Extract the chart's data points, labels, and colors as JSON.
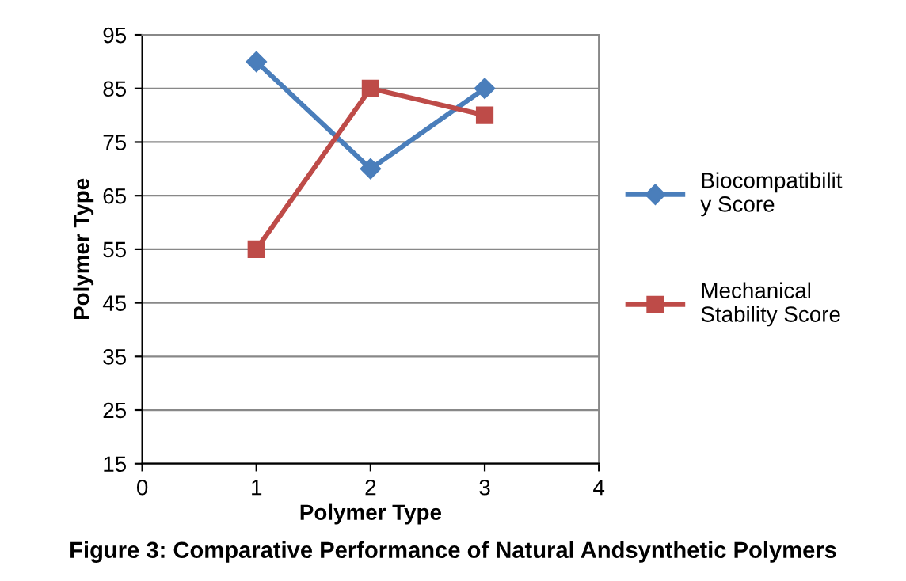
{
  "chart_data": {
    "type": "line",
    "xlabel": "Polymer Type",
    "ylabel": "Polymer Type",
    "x": [
      1,
      2,
      3
    ],
    "series": [
      {
        "name": "Biocompatibility Score",
        "color": "#4a7ebb",
        "values": [
          90,
          70,
          85
        ],
        "marker": "diamond"
      },
      {
        "name": "Mechanical Stability Score",
        "color": "#be4b48",
        "values": [
          55,
          85,
          80
        ],
        "marker": "square"
      }
    ],
    "xlim": [
      0,
      4
    ],
    "xticks": [
      0,
      1,
      2,
      3,
      4
    ],
    "ylim": [
      15,
      95
    ],
    "yticks": [
      15,
      25,
      35,
      45,
      55,
      65,
      75,
      85,
      95
    ],
    "grid": "y",
    "legend": "right",
    "line_style": "solid",
    "annotations": [
      "Figure 3: Comparative Performance of Natural Andsynthetic Polymers"
    ]
  }
}
